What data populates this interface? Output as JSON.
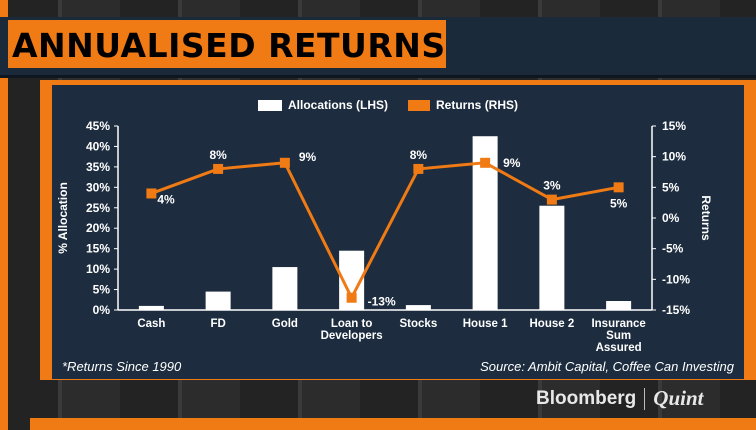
{
  "header": {
    "title": "ANNUALISED RETURNS"
  },
  "legend": {
    "bars_label": "Allocations (LHS)",
    "line_label": "Returns (RHS)"
  },
  "footnote": "*Returns Since 1990",
  "source": "Source: Ambit Capital, Coffee Can Investing",
  "branding": {
    "left": "Bloomberg",
    "right": "Quint"
  },
  "colors": {
    "accent": "#f07a14",
    "panel": "#1d2d3f",
    "bars": "#ffffff"
  },
  "chart_data": {
    "type": "bar",
    "categories": [
      "Cash",
      "FD",
      "Gold",
      "Loan to Developers",
      "Stocks",
      "House 1",
      "House 2",
      "Insurance Sum Assured"
    ],
    "category_label_lines": [
      [
        "Cash"
      ],
      [
        "FD"
      ],
      [
        "Gold"
      ],
      [
        "Loan to",
        "Developers"
      ],
      [
        "Stocks"
      ],
      [
        "House 1"
      ],
      [
        "House 2"
      ],
      [
        "Insurance",
        "Sum",
        "Assured"
      ]
    ],
    "series": [
      {
        "name": "Allocations (LHS)",
        "type": "bar",
        "axis": "left",
        "values": [
          1,
          4.5,
          10.5,
          14.5,
          1.2,
          42.5,
          25.5,
          2.2
        ]
      },
      {
        "name": "Returns (RHS)",
        "type": "line",
        "axis": "right",
        "values": [
          4,
          8,
          9,
          -13,
          8,
          9,
          3,
          5
        ],
        "labels": [
          "4%",
          "8%",
          "9%",
          "-13%",
          "8%",
          "9%",
          "3%",
          "5%"
        ]
      }
    ],
    "ylabel": "% Allocation",
    "y2label": "Returns",
    "ylim": [
      0,
      45
    ],
    "y2lim": [
      -15,
      15
    ],
    "yticks": [
      0,
      5,
      10,
      15,
      20,
      25,
      30,
      35,
      40,
      45
    ],
    "ytick_labels": [
      "0%",
      "5%",
      "10%",
      "15%",
      "20%",
      "25%",
      "30%",
      "35%",
      "40%",
      "45%"
    ],
    "y2ticks": [
      -15,
      -10,
      -5,
      0,
      5,
      10,
      15
    ],
    "y2tick_labels": [
      "-15%",
      "-10%",
      "-5%",
      "0%",
      "5%",
      "10%",
      "15%"
    ],
    "legend_position": "top-center",
    "grid": false
  }
}
